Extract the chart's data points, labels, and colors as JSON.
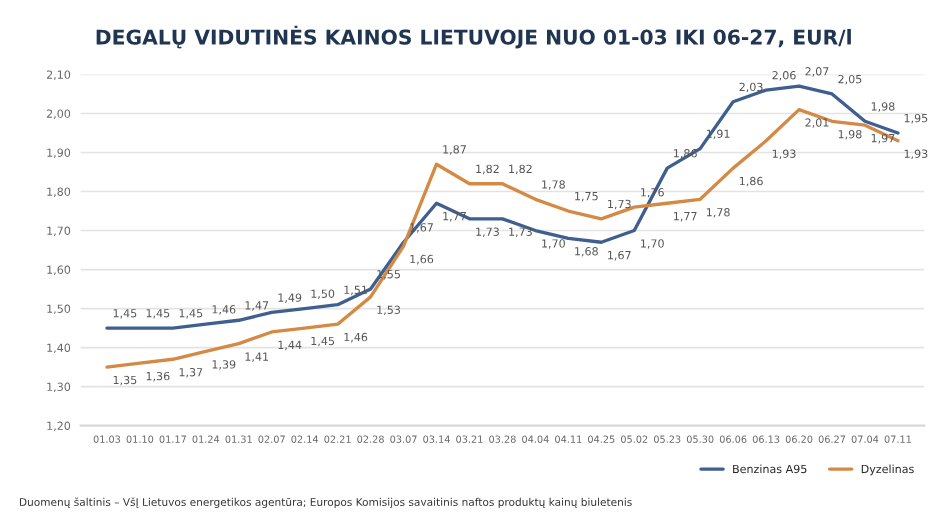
{
  "chart_data": {
    "type": "line",
    "title": "DEGALŲ VIDUTINĖS KAINOS LIETUVOJE NUO 01-03 IKI 06-27, EUR/l",
    "categories": [
      "01.03",
      "01.10",
      "01.17",
      "01.24",
      "01.31",
      "02.07",
      "02.14",
      "02.21",
      "02.28",
      "03.07",
      "03.14",
      "03.21",
      "03.28",
      "04.04",
      "04.11",
      "04.25",
      "05.02",
      "05.23",
      "05.30",
      "06.06",
      "06.13",
      "06.20",
      "06.27",
      "07.04",
      "07.11"
    ],
    "series": [
      {
        "name": "Benzinas A95",
        "color": "#3e5f8f",
        "values": [
          1.45,
          1.45,
          1.45,
          1.46,
          1.47,
          1.49,
          1.5,
          1.51,
          1.55,
          1.67,
          1.77,
          1.73,
          1.73,
          1.7,
          1.68,
          1.67,
          1.7,
          1.86,
          1.91,
          2.03,
          2.06,
          2.07,
          2.05,
          1.98,
          1.95
        ],
        "value_labels": [
          "1,45",
          "1,45",
          "1,45",
          "1,46",
          "1,47",
          "1,49",
          "1,50",
          "1,51",
          "1,55",
          "1,67",
          "1,77",
          "1,73",
          "1,73",
          "1,70",
          "1,68",
          "1,67",
          "1,70",
          "1,86",
          "1,91",
          "2,03",
          "2,06",
          "2,07",
          "2,05",
          "1,98",
          "1,95"
        ]
      },
      {
        "name": "Dyzelinas",
        "color": "#d48a45",
        "values": [
          1.35,
          1.36,
          1.37,
          1.39,
          1.41,
          1.44,
          1.45,
          1.46,
          1.53,
          1.66,
          1.87,
          1.82,
          1.82,
          1.78,
          1.75,
          1.73,
          1.76,
          1.77,
          1.78,
          1.86,
          1.93,
          2.01,
          1.98,
          1.97,
          1.93
        ],
        "value_labels": [
          "1,35",
          "1,36",
          "1,37",
          "1,39",
          "1,41",
          "1,44",
          "1,45",
          "1,46",
          "1,53",
          "1,66",
          "1,87",
          "1,82",
          "1,82",
          "1,78",
          "1,75",
          "1,73",
          "1,76",
          "1,77",
          "1,78",
          "1,86",
          "1,93",
          "2,01",
          "1,98",
          "1,97",
          "1,93"
        ]
      }
    ],
    "ylim": [
      1.2,
      2.1
    ],
    "yticks": [
      {
        "value": 1.2,
        "label": "1,20"
      },
      {
        "value": 1.3,
        "label": "1,30"
      },
      {
        "value": 1.4,
        "label": "1,40"
      },
      {
        "value": 1.5,
        "label": "1,50"
      },
      {
        "value": 1.6,
        "label": "1,60"
      },
      {
        "value": 1.7,
        "label": "1,70"
      },
      {
        "value": 1.8,
        "label": "1,80"
      },
      {
        "value": 1.9,
        "label": "1,90"
      },
      {
        "value": 2.0,
        "label": "2,00"
      },
      {
        "value": 2.1,
        "label": "2,10"
      }
    ],
    "grid": "y",
    "legend": "bottom",
    "marker": "none",
    "line_style": "solid",
    "annotations": [
      "Duomenų šaltinis – VšĮ Lietuvos energetikos agentūra; Europos Komisijos savaitinis naftos produktų kainų biuletenis"
    ]
  }
}
